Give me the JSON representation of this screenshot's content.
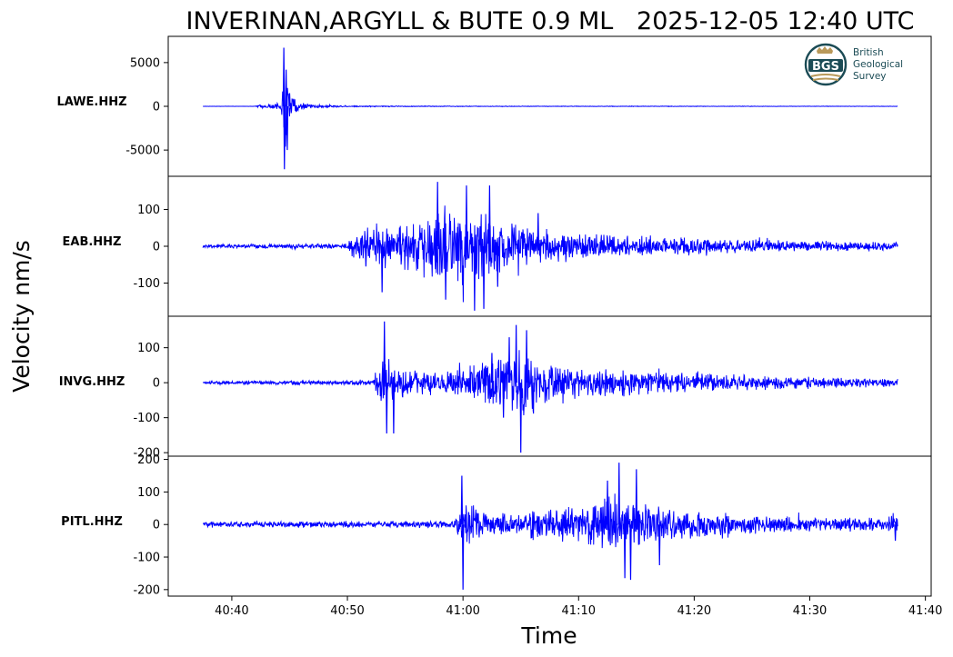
{
  "title": "INVERINAN,ARGYLL & BUTE 0.9 ML   2025-12-05 12:40 UTC",
  "logo": {
    "line1": "British",
    "line2": "Geological",
    "line3": "Survey",
    "mark": "BGS",
    "color": "#1b4b55",
    "accent": "#b9995a"
  },
  "colors": {
    "trace": "#0000ff",
    "axis": "#000000"
  },
  "chart_data": {
    "type": "line",
    "title": "INVERINAN,ARGYLL & BUTE 0.9 ML   2025-12-05 12:40 UTC",
    "xlabel": "Time",
    "ylabel": "Velocity nm/s",
    "x_unit": "seconds after 12:40:00 UTC",
    "xlim": [
      34.5,
      100.5
    ],
    "x_ticks": [
      {
        "value": 40,
        "label": "40:40"
      },
      {
        "value": 50,
        "label": "40:50"
      },
      {
        "value": 60,
        "label": "41:00"
      },
      {
        "value": 70,
        "label": "41:10"
      },
      {
        "value": 80,
        "label": "41:20"
      },
      {
        "value": 90,
        "label": "41:30"
      },
      {
        "value": 100,
        "label": "41:40"
      }
    ],
    "trace_span": [
      37.5,
      97.6
    ],
    "series": [
      {
        "name": "LAWE.HHZ",
        "ylim": [
          -8000,
          8000
        ],
        "yticks": [
          {
            "value": 5000,
            "label": "5000"
          },
          {
            "value": 0,
            "label": "0"
          },
          {
            "value": -5000,
            "label": "-5000"
          }
        ],
        "noise": 12,
        "envelope": [
          [
            37.5,
            12
          ],
          [
            42.0,
            15
          ],
          [
            42.3,
            250
          ],
          [
            43.5,
            300
          ],
          [
            44.3,
            500
          ],
          [
            44.45,
            7200
          ],
          [
            44.8,
            3500
          ],
          [
            45.5,
            800
          ],
          [
            47,
            250
          ],
          [
            50,
            80
          ],
          [
            60,
            40
          ],
          [
            97.6,
            25
          ]
        ],
        "peaks": [
          [
            44.5,
            6700
          ],
          [
            44.55,
            -7200
          ],
          [
            44.7,
            4200
          ],
          [
            44.8,
            -5000
          ],
          [
            45.0,
            1500
          ]
        ]
      },
      {
        "name": "EAB.HHZ",
        "ylim": [
          -190,
          190
        ],
        "yticks": [
          {
            "value": 100,
            "label": "100"
          },
          {
            "value": 0,
            "label": "0"
          },
          {
            "value": -100,
            "label": "-100"
          }
        ],
        "noise": 5,
        "envelope": [
          [
            37.5,
            6
          ],
          [
            50.0,
            8
          ],
          [
            50.3,
            30
          ],
          [
            51.5,
            55
          ],
          [
            52.5,
            75
          ],
          [
            54,
            55
          ],
          [
            56,
            85
          ],
          [
            58,
            120
          ],
          [
            60,
            130
          ],
          [
            61.5,
            135
          ],
          [
            63,
            90
          ],
          [
            65,
            60
          ],
          [
            70,
            40
          ],
          [
            75,
            30
          ],
          [
            85,
            20
          ],
          [
            97.6,
            12
          ]
        ],
        "peaks": [
          [
            51.6,
            -55
          ],
          [
            53.0,
            -125
          ],
          [
            57.8,
            175
          ],
          [
            58.5,
            -145
          ],
          [
            60.3,
            165
          ],
          [
            61.0,
            -175
          ],
          [
            61.8,
            -170
          ],
          [
            62.3,
            165
          ],
          [
            63.0,
            -110
          ],
          [
            66.5,
            90
          ]
        ]
      },
      {
        "name": "INVG.HHZ",
        "ylim": [
          -210,
          190
        ],
        "yticks": [
          {
            "value": 100,
            "label": "100"
          },
          {
            "value": 0,
            "label": "0"
          },
          {
            "value": -100,
            "label": "-100"
          },
          {
            "value": -200,
            "label": "-200"
          }
        ],
        "noise": 5,
        "envelope": [
          [
            37.5,
            5
          ],
          [
            52.2,
            8
          ],
          [
            52.6,
            55
          ],
          [
            53.2,
            80
          ],
          [
            54.5,
            60
          ],
          [
            56,
            40
          ],
          [
            58,
            35
          ],
          [
            60,
            45
          ],
          [
            62,
            70
          ],
          [
            64,
            100
          ],
          [
            65,
            115
          ],
          [
            67,
            70
          ],
          [
            70,
            50
          ],
          [
            75,
            40
          ],
          [
            85,
            22
          ],
          [
            97.6,
            14
          ]
        ],
        "peaks": [
          [
            53.2,
            175
          ],
          [
            53.4,
            -145
          ],
          [
            54.0,
            -145
          ],
          [
            62.5,
            85
          ],
          [
            63.5,
            -100
          ],
          [
            64.6,
            165
          ],
          [
            65.0,
            -200
          ],
          [
            65.5,
            150
          ],
          [
            64.0,
            130
          ]
        ]
      },
      {
        "name": "PITL.HHZ",
        "ylim": [
          -220,
          210
        ],
        "yticks": [
          {
            "value": 200,
            "label": "200"
          },
          {
            "value": 100,
            "label": "100"
          },
          {
            "value": 0,
            "label": "0"
          },
          {
            "value": -100,
            "label": "-100"
          },
          {
            "value": -200,
            "label": "-200"
          }
        ],
        "noise": 10,
        "envelope": [
          [
            37.5,
            10
          ],
          [
            59.3,
            12
          ],
          [
            59.8,
            60
          ],
          [
            60.5,
            70
          ],
          [
            62,
            45
          ],
          [
            65,
            38
          ],
          [
            68,
            55
          ],
          [
            71,
            80
          ],
          [
            73,
            100
          ],
          [
            75,
            90
          ],
          [
            78,
            55
          ],
          [
            82,
            40
          ],
          [
            90,
            25
          ],
          [
            96,
            22
          ],
          [
            97.3,
            30
          ],
          [
            97.6,
            30
          ]
        ],
        "peaks": [
          [
            59.9,
            150
          ],
          [
            60.0,
            -200
          ],
          [
            72.5,
            135
          ],
          [
            73.5,
            190
          ],
          [
            74.0,
            -165
          ],
          [
            74.5,
            -170
          ],
          [
            75.0,
            170
          ],
          [
            77.0,
            -125
          ],
          [
            97.4,
            -50
          ]
        ]
      }
    ]
  }
}
